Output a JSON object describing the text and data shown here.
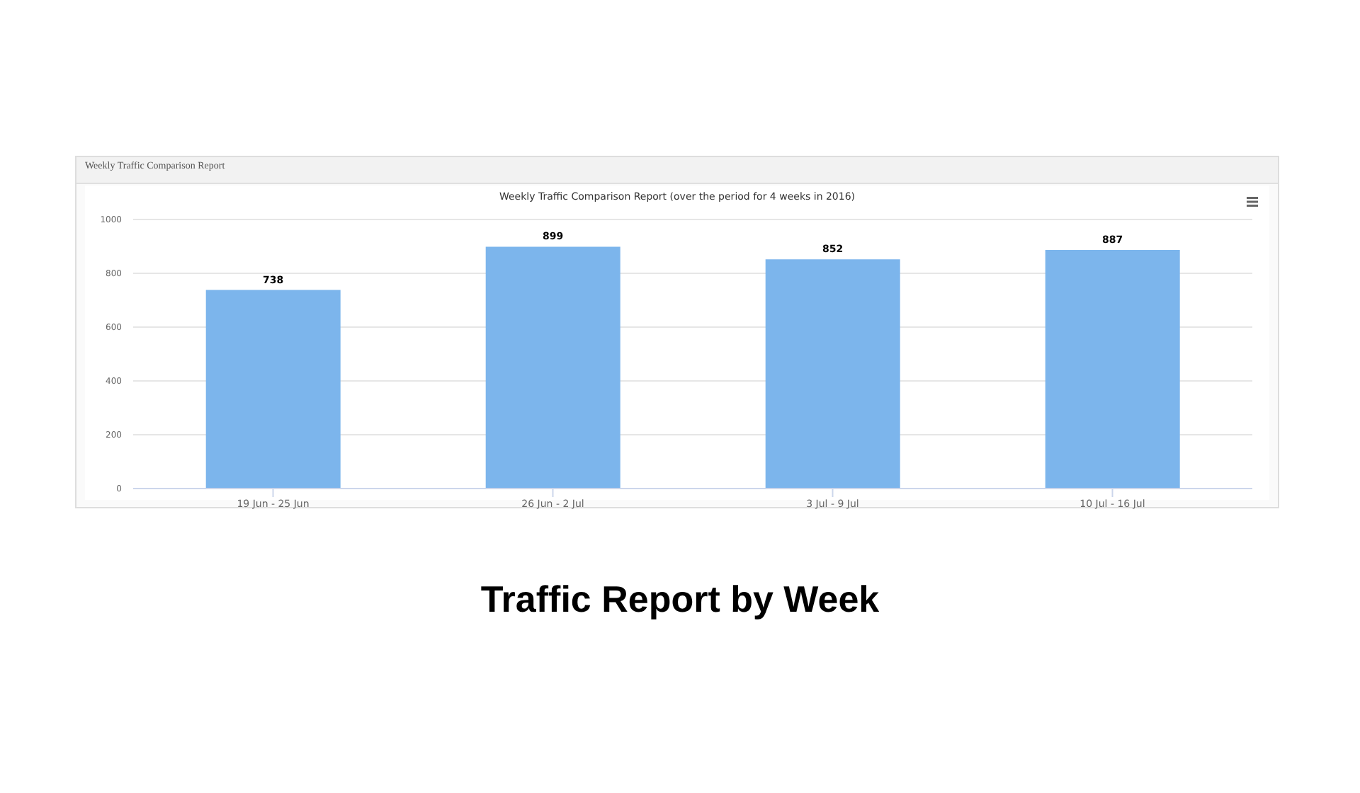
{
  "chart_data": {
    "type": "bar",
    "title": "Traffic Report by Week",
    "subtitle": "Weekly Traffic Comparison Report (over the period for 4 weeks in 2016)",
    "annotations": [
      "Weekly Traffic Comparison Report"
    ],
    "categories": [
      "19 Jun - 25 Jun",
      "26 Jun - 2 Jul",
      "3 Jul - 9 Jul",
      "10 Jul - 16 Jul"
    ],
    "values": [
      738,
      899,
      852,
      887
    ],
    "color": "#7cb5ec",
    "ylim": [
      0,
      1000
    ],
    "yticks": [
      0,
      200,
      400,
      600,
      800,
      1000
    ],
    "grid": "y",
    "data_labels": true
  }
}
